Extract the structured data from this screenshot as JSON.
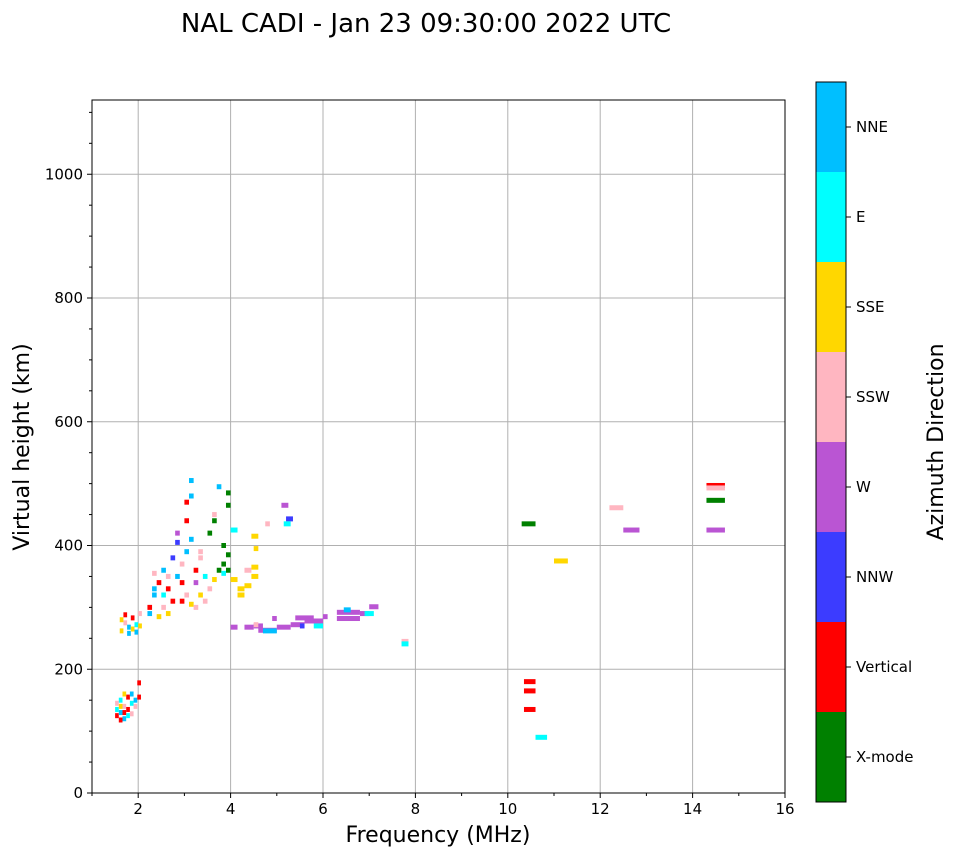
{
  "chart_data": {
    "type": "scatter",
    "title": "NAL CADI - Jan 23 09:30:00 2022 UTC",
    "xlabel": "Frequency (MHz)",
    "ylabel": "Virtual height (km)",
    "xlim": [
      1,
      16
    ],
    "ylim": [
      0,
      1120
    ],
    "xticks": [
      2,
      4,
      6,
      8,
      10,
      12,
      14,
      16
    ],
    "yticks": [
      0,
      200,
      400,
      600,
      800,
      1000
    ],
    "grid": true,
    "colorbar": {
      "label": "Azimuth Direction",
      "categories": [
        "X-mode",
        "Vertical",
        "NNW",
        "W",
        "SSW",
        "SSE",
        "E",
        "NNE"
      ],
      "colors": [
        "#008000",
        "#ff0000",
        "#3c3cff",
        "#ba55d3",
        "#ffb6c1",
        "#ffd700",
        "#00ffff",
        "#00bfff"
      ]
    },
    "point_format": [
      "freq_start_MHz",
      "freq_end_MHz",
      "height_km",
      "direction_index"
    ],
    "points": [
      [
        1.5,
        1.58,
        125,
        1
      ],
      [
        1.58,
        1.66,
        130,
        7
      ],
      [
        1.66,
        1.74,
        140,
        4
      ],
      [
        1.74,
        1.82,
        135,
        1
      ],
      [
        1.5,
        1.58,
        145,
        4
      ],
      [
        1.58,
        1.66,
        150,
        6
      ],
      [
        1.66,
        1.74,
        120,
        7
      ],
      [
        1.82,
        1.9,
        145,
        6
      ],
      [
        1.9,
        1.98,
        150,
        7
      ],
      [
        1.74,
        1.82,
        155,
        1
      ],
      [
        1.5,
        1.58,
        135,
        6
      ],
      [
        1.58,
        1.66,
        118,
        1
      ],
      [
        1.66,
        1.74,
        160,
        5
      ],
      [
        1.82,
        1.9,
        128,
        4
      ],
      [
        1.9,
        1.98,
        140,
        4
      ],
      [
        1.98,
        2.06,
        155,
        1
      ],
      [
        1.58,
        1.66,
        140,
        5
      ],
      [
        1.74,
        1.82,
        125,
        6
      ],
      [
        1.82,
        1.9,
        160,
        7
      ],
      [
        1.98,
        2.06,
        178,
        1
      ],
      [
        1.66,
        1.74,
        130,
        1
      ],
      [
        1.6,
        1.68,
        262,
        5
      ],
      [
        1.68,
        1.76,
        275,
        4
      ],
      [
        1.76,
        1.84,
        268,
        7
      ],
      [
        1.84,
        1.92,
        283,
        1
      ],
      [
        1.92,
        2.0,
        272,
        6
      ],
      [
        2.0,
        2.08,
        290,
        4
      ],
      [
        1.76,
        1.84,
        258,
        7
      ],
      [
        1.84,
        1.92,
        265,
        5
      ],
      [
        1.6,
        1.68,
        280,
        5
      ],
      [
        2.0,
        2.08,
        270,
        5
      ],
      [
        1.92,
        2.0,
        260,
        7
      ],
      [
        1.68,
        1.76,
        288,
        1
      ],
      [
        2.2,
        2.3,
        300,
        1
      ],
      [
        2.3,
        2.4,
        320,
        7
      ],
      [
        2.4,
        2.5,
        340,
        1
      ],
      [
        2.5,
        2.6,
        360,
        7
      ],
      [
        2.3,
        2.4,
        355,
        4
      ],
      [
        2.6,
        2.7,
        330,
        1
      ],
      [
        2.7,
        2.8,
        310,
        1
      ],
      [
        2.8,
        2.9,
        350,
        7
      ],
      [
        2.9,
        3.0,
        370,
        4
      ],
      [
        3.0,
        3.1,
        390,
        7
      ],
      [
        2.5,
        2.6,
        300,
        4
      ],
      [
        2.6,
        2.7,
        290,
        5
      ],
      [
        2.4,
        2.5,
        285,
        5
      ],
      [
        2.7,
        2.8,
        380,
        2
      ],
      [
        2.9,
        3.0,
        340,
        1
      ],
      [
        3.0,
        3.1,
        320,
        4
      ],
      [
        3.1,
        3.2,
        305,
        5
      ],
      [
        3.2,
        3.3,
        300,
        4
      ],
      [
        3.3,
        3.4,
        320,
        5
      ],
      [
        3.4,
        3.5,
        310,
        4
      ],
      [
        3.5,
        3.6,
        330,
        4
      ],
      [
        3.6,
        3.7,
        345,
        5
      ],
      [
        3.7,
        3.8,
        360,
        0
      ],
      [
        3.8,
        3.9,
        370,
        0
      ],
      [
        3.9,
        4.0,
        385,
        0
      ],
      [
        3.1,
        3.2,
        410,
        7
      ],
      [
        3.0,
        3.1,
        440,
        1
      ],
      [
        3.0,
        3.1,
        470,
        1
      ],
      [
        3.1,
        3.2,
        480,
        7
      ],
      [
        2.8,
        2.9,
        420,
        3
      ],
      [
        2.8,
        2.9,
        405,
        2
      ],
      [
        3.3,
        3.4,
        390,
        4
      ],
      [
        3.5,
        3.6,
        420,
        0
      ],
      [
        3.6,
        3.7,
        440,
        0
      ],
      [
        3.9,
        4.0,
        465,
        0
      ],
      [
        3.9,
        4.0,
        485,
        0
      ],
      [
        3.7,
        3.8,
        495,
        7
      ],
      [
        3.1,
        3.2,
        505,
        7
      ],
      [
        3.6,
        3.7,
        450,
        4
      ],
      [
        3.3,
        3.4,
        380,
        4
      ],
      [
        3.2,
        3.3,
        360,
        1
      ],
      [
        2.6,
        2.7,
        350,
        4
      ],
      [
        2.3,
        2.4,
        330,
        7
      ],
      [
        2.2,
        2.3,
        290,
        7
      ],
      [
        2.5,
        2.6,
        320,
        6
      ],
      [
        2.9,
        3.0,
        310,
        1
      ],
      [
        3.4,
        3.5,
        350,
        6
      ],
      [
        3.2,
        3.3,
        340,
        3
      ],
      [
        3.8,
        3.9,
        400,
        0
      ],
      [
        3.9,
        4.0,
        360,
        0
      ],
      [
        3.8,
        3.9,
        355,
        6
      ],
      [
        4.0,
        4.15,
        425,
        6
      ],
      [
        4.0,
        4.15,
        345,
        5
      ],
      [
        4.15,
        4.3,
        330,
        5
      ],
      [
        4.15,
        4.3,
        320,
        5
      ],
      [
        4.3,
        4.45,
        360,
        4
      ],
      [
        4.45,
        4.6,
        365,
        5
      ],
      [
        4.45,
        4.6,
        350,
        5
      ],
      [
        4.3,
        4.45,
        335,
        5
      ],
      [
        4.5,
        4.6,
        395,
        5
      ],
      [
        4.45,
        4.6,
        415,
        5
      ],
      [
        4.75,
        4.85,
        435,
        4
      ],
      [
        5.1,
        5.25,
        465,
        3
      ],
      [
        5.2,
        5.35,
        443,
        2
      ],
      [
        5.15,
        5.3,
        435,
        6
      ],
      [
        4.0,
        4.15,
        268,
        3
      ],
      [
        4.3,
        4.5,
        268,
        3
      ],
      [
        4.5,
        4.7,
        270,
        3
      ],
      [
        4.6,
        5.0,
        263,
        3
      ],
      [
        5.0,
        5.3,
        268,
        3
      ],
      [
        5.3,
        5.6,
        272,
        3
      ],
      [
        5.6,
        6.0,
        278,
        3
      ],
      [
        5.4,
        5.8,
        283,
        3
      ],
      [
        6.0,
        6.1,
        285,
        3
      ],
      [
        6.3,
        6.8,
        282,
        3
      ],
      [
        6.3,
        6.8,
        292,
        3
      ],
      [
        6.8,
        7.0,
        290,
        3
      ],
      [
        7.0,
        7.2,
        301,
        3
      ],
      [
        6.45,
        6.6,
        296,
        7
      ],
      [
        6.9,
        7.1,
        290,
        6
      ],
      [
        4.7,
        5.0,
        262,
        7
      ],
      [
        5.8,
        6.0,
        270,
        6
      ],
      [
        5.5,
        5.6,
        270,
        2
      ],
      [
        4.9,
        5.0,
        282,
        3
      ],
      [
        4.5,
        4.6,
        272,
        4
      ],
      [
        7.7,
        7.85,
        245,
        4
      ],
      [
        7.7,
        7.85,
        241,
        6
      ],
      [
        10.35,
        10.6,
        180,
        1
      ],
      [
        10.35,
        10.6,
        165,
        1
      ],
      [
        10.35,
        10.6,
        135,
        1
      ],
      [
        10.6,
        10.85,
        90,
        6
      ],
      [
        10.3,
        10.6,
        435,
        0
      ],
      [
        11.0,
        11.3,
        375,
        5
      ],
      [
        12.2,
        12.5,
        461,
        4
      ],
      [
        12.5,
        12.85,
        425,
        3
      ],
      [
        14.3,
        14.7,
        497,
        1
      ],
      [
        14.3,
        14.7,
        493,
        4
      ],
      [
        14.3,
        14.7,
        473,
        0
      ],
      [
        14.3,
        14.7,
        425,
        3
      ]
    ]
  }
}
